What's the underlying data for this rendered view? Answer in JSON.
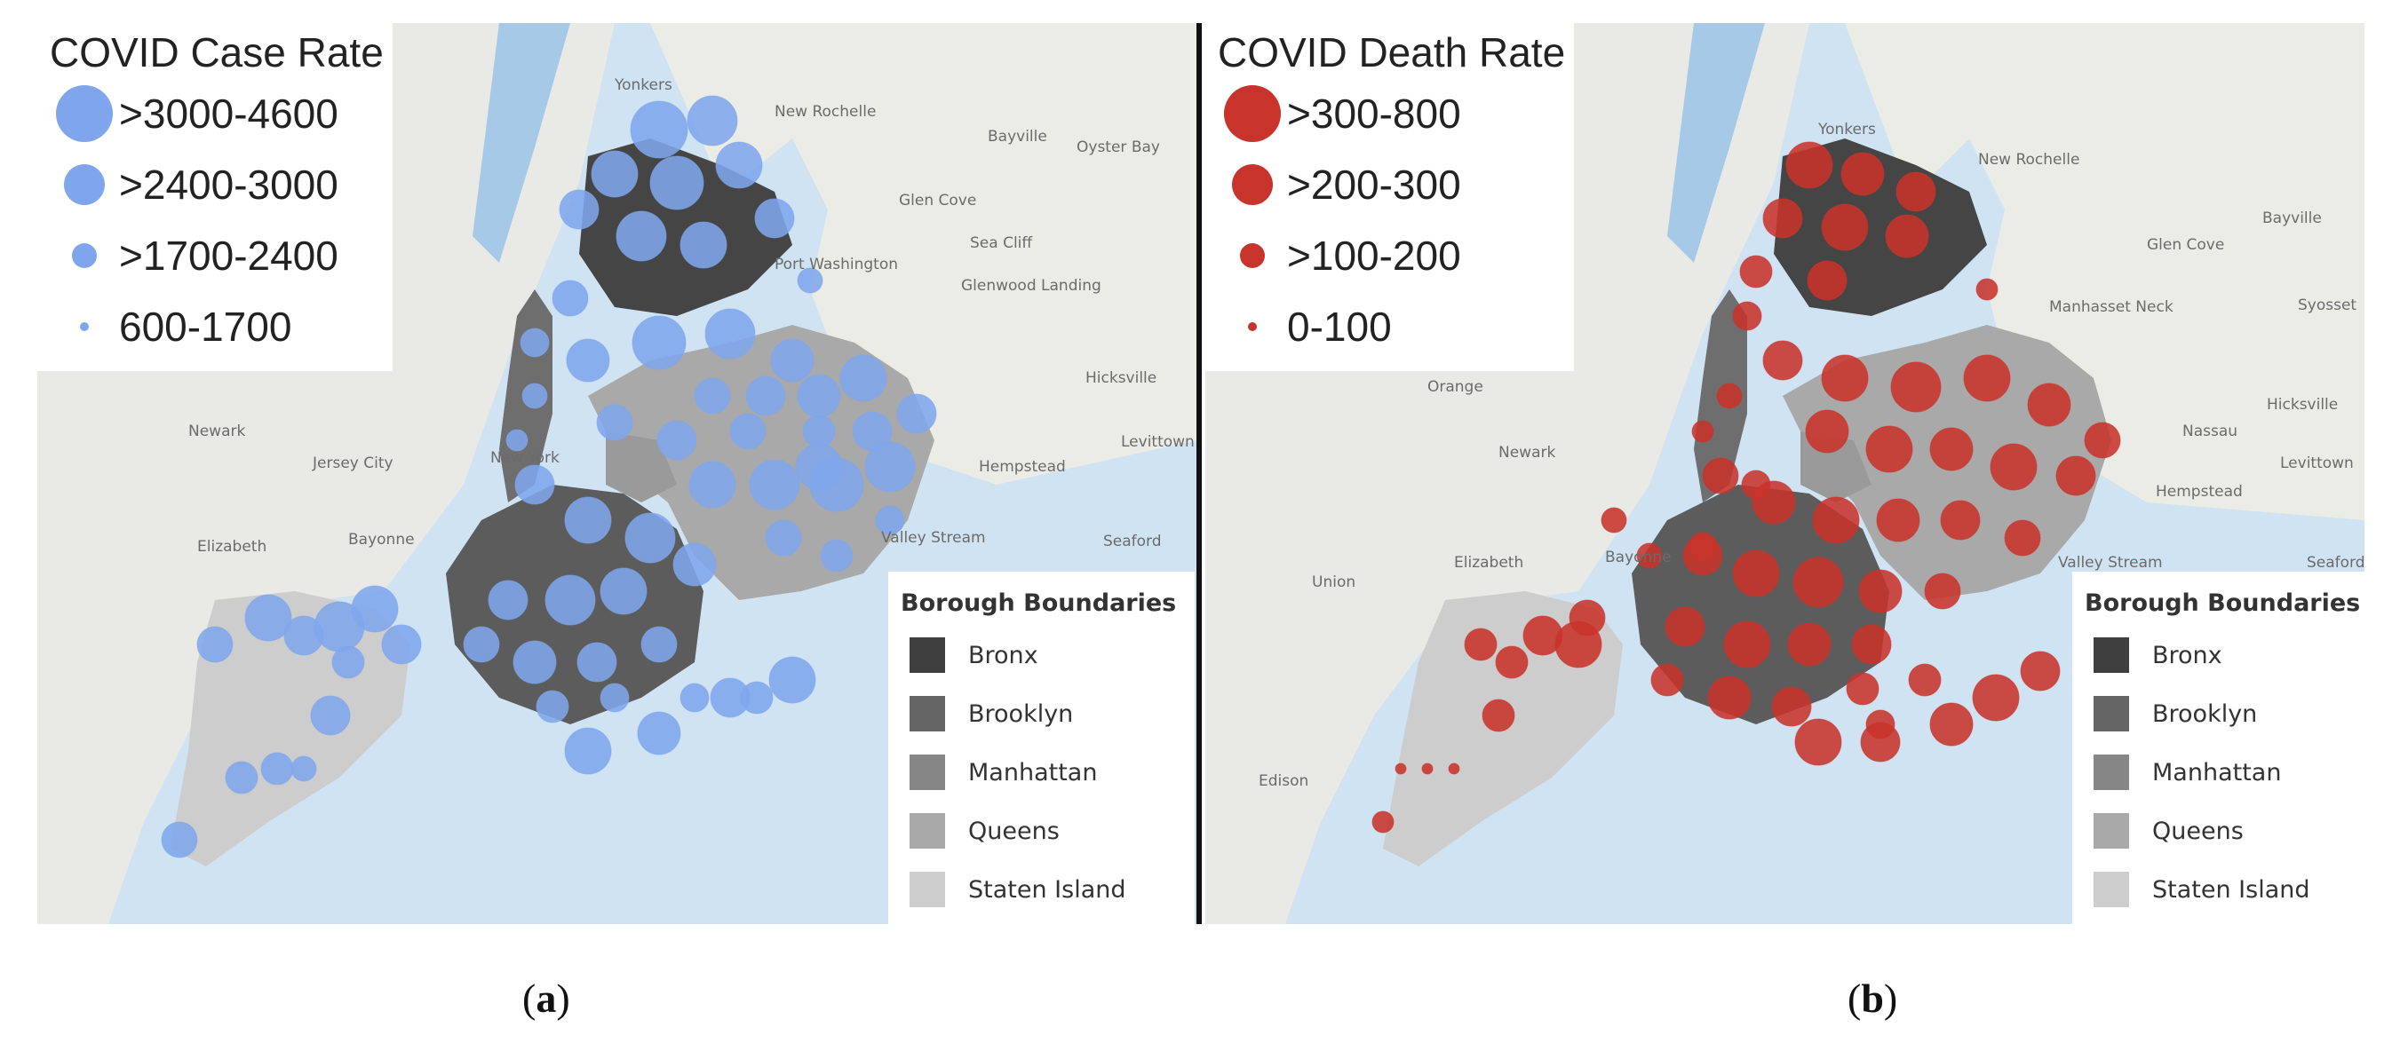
{
  "panels": [
    {
      "legend_title": "COVID Case Rate",
      "color": "#7fa6ec",
      "legend": [
        ">3000-4600",
        ">2400-3000",
        ">1700-2400",
        "600-1700"
      ],
      "caption_letter": "a",
      "places": [
        "Yonkers",
        "New Rochelle",
        "Bayville",
        "Oyster Bay",
        "Glen Cove",
        "Sea Cliff",
        "Port Washington",
        "Glenwood Landing",
        "Hicksville",
        "Levittown",
        "Hempstead",
        "Valley Stream",
        "Seaford",
        "Newark",
        "Jersey City",
        "Bayonne",
        "Elizabeth",
        "New York"
      ]
    },
    {
      "legend_title": "COVID Death Rate",
      "color": "#c8332b",
      "legend": [
        ">300-800",
        ">200-300",
        ">100-200",
        "0-100"
      ],
      "caption_letter": "b",
      "places": [
        "Yonkers",
        "New Rochelle",
        "Bayville",
        "Glen Cove",
        "Manhasset Neck",
        "Syosset",
        "Hicksville",
        "Levittown",
        "Hempstead",
        "Valley Stream",
        "Seaford",
        "Nassau",
        "Orange",
        "Newark",
        "Elizabeth",
        "Bayonne",
        "Union",
        "Edison"
      ]
    }
  ],
  "borough_legend": {
    "title": "Borough Boundaries",
    "items": [
      {
        "name": "Bronx",
        "color": "#3f3f3f"
      },
      {
        "name": "Brooklyn",
        "color": "#656565"
      },
      {
        "name": "Manhattan",
        "color": "#868686"
      },
      {
        "name": "Queens",
        "color": "#a9a9a9"
      },
      {
        "name": "Staten Island",
        "color": "#cdcdcd"
      }
    ]
  },
  "caption_parens": [
    "(",
    ")"
  ]
}
